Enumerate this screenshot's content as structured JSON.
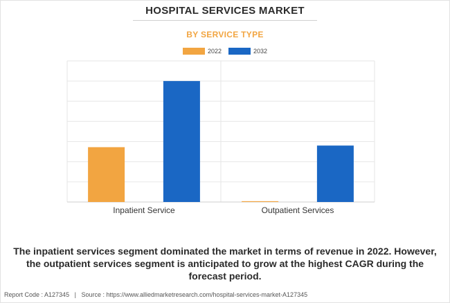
{
  "header": {
    "title": "HOSPITAL SERVICES MARKET",
    "subtitle": "BY SERVICE TYPE"
  },
  "colors": {
    "series_2022": "#f2a541",
    "series_2032": "#1a67c4",
    "grid": "#e6e6e6",
    "axis_text": "#333333"
  },
  "chart_data": {
    "type": "bar",
    "title": "HOSPITAL SERVICES MARKET",
    "subtitle": "BY SERVICE TYPE",
    "categories": [
      "Inpatient Service",
      "Outpatient Services"
    ],
    "series": [
      {
        "name": "2022",
        "values": [
          68,
          1
        ]
      },
      {
        "name": "2032",
        "values": [
          150,
          70
        ]
      }
    ],
    "ylim": [
      0,
      175
    ],
    "y_gridline_step": 25,
    "y_tick_labels_shown": false,
    "xlabel": "",
    "ylabel": "",
    "legend_position": "top-center",
    "grid": true
  },
  "summary": "The inpatient services segment dominated the market in terms of revenue in 2022. However, the outpatient services segment is anticipated to grow at the highest CAGR during the forecast period.",
  "footer": {
    "report_code": "Report Code : A127345",
    "separator": "|",
    "source": "Source : https://www.alliedmarketresearch.com/hospital-services-market-A127345"
  }
}
